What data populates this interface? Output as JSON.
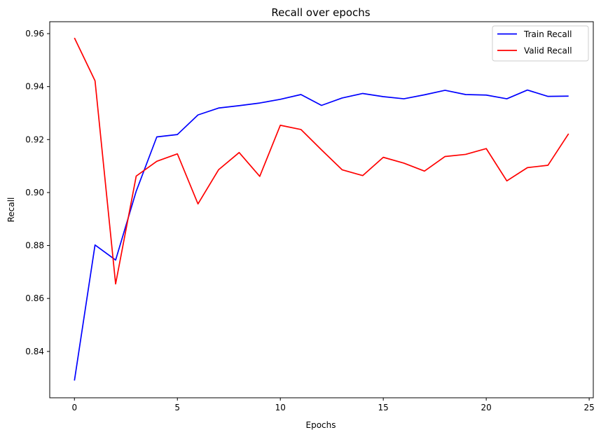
{
  "chart_data": {
    "type": "line",
    "title": "Recall over epochs",
    "xlabel": "Epochs",
    "ylabel": "Recall",
    "xlim": [
      -1.2,
      25.2
    ],
    "ylim": [
      0.8225,
      0.9645
    ],
    "xticks": [
      0,
      5,
      10,
      15,
      20,
      25
    ],
    "yticks": [
      0.84,
      0.86,
      0.88,
      0.9,
      0.92,
      0.94,
      0.96
    ],
    "ytick_labels": [
      "0.84",
      "0.86",
      "0.88",
      "0.90",
      "0.92",
      "0.94",
      "0.96"
    ],
    "grid": false,
    "legend_position": "top-right",
    "x": [
      0,
      1,
      2,
      3,
      4,
      5,
      6,
      7,
      8,
      9,
      10,
      11,
      12,
      13,
      14,
      15,
      16,
      17,
      18,
      19,
      20,
      21,
      22,
      23,
      24
    ],
    "series": [
      {
        "name": "Train Recall",
        "color": "#0000ff",
        "values": [
          0.829,
          0.8802,
          0.8745,
          0.9005,
          0.921,
          0.9219,
          0.9293,
          0.9319,
          0.9328,
          0.9338,
          0.9352,
          0.937,
          0.9329,
          0.9357,
          0.9374,
          0.9362,
          0.9354,
          0.9369,
          0.9386,
          0.937,
          0.9368,
          0.9354,
          0.9387,
          0.9363,
          0.9364
        ]
      },
      {
        "name": "Valid Recall",
        "color": "#ff0000",
        "values": [
          0.9584,
          0.9422,
          0.8655,
          0.9062,
          0.9118,
          0.9146,
          0.8957,
          0.9086,
          0.9151,
          0.9061,
          0.9254,
          0.9238,
          0.9161,
          0.9086,
          0.9064,
          0.9133,
          0.9111,
          0.9081,
          0.9136,
          0.9144,
          0.9166,
          0.9044,
          0.9094,
          0.9103,
          0.9222
        ]
      }
    ]
  }
}
